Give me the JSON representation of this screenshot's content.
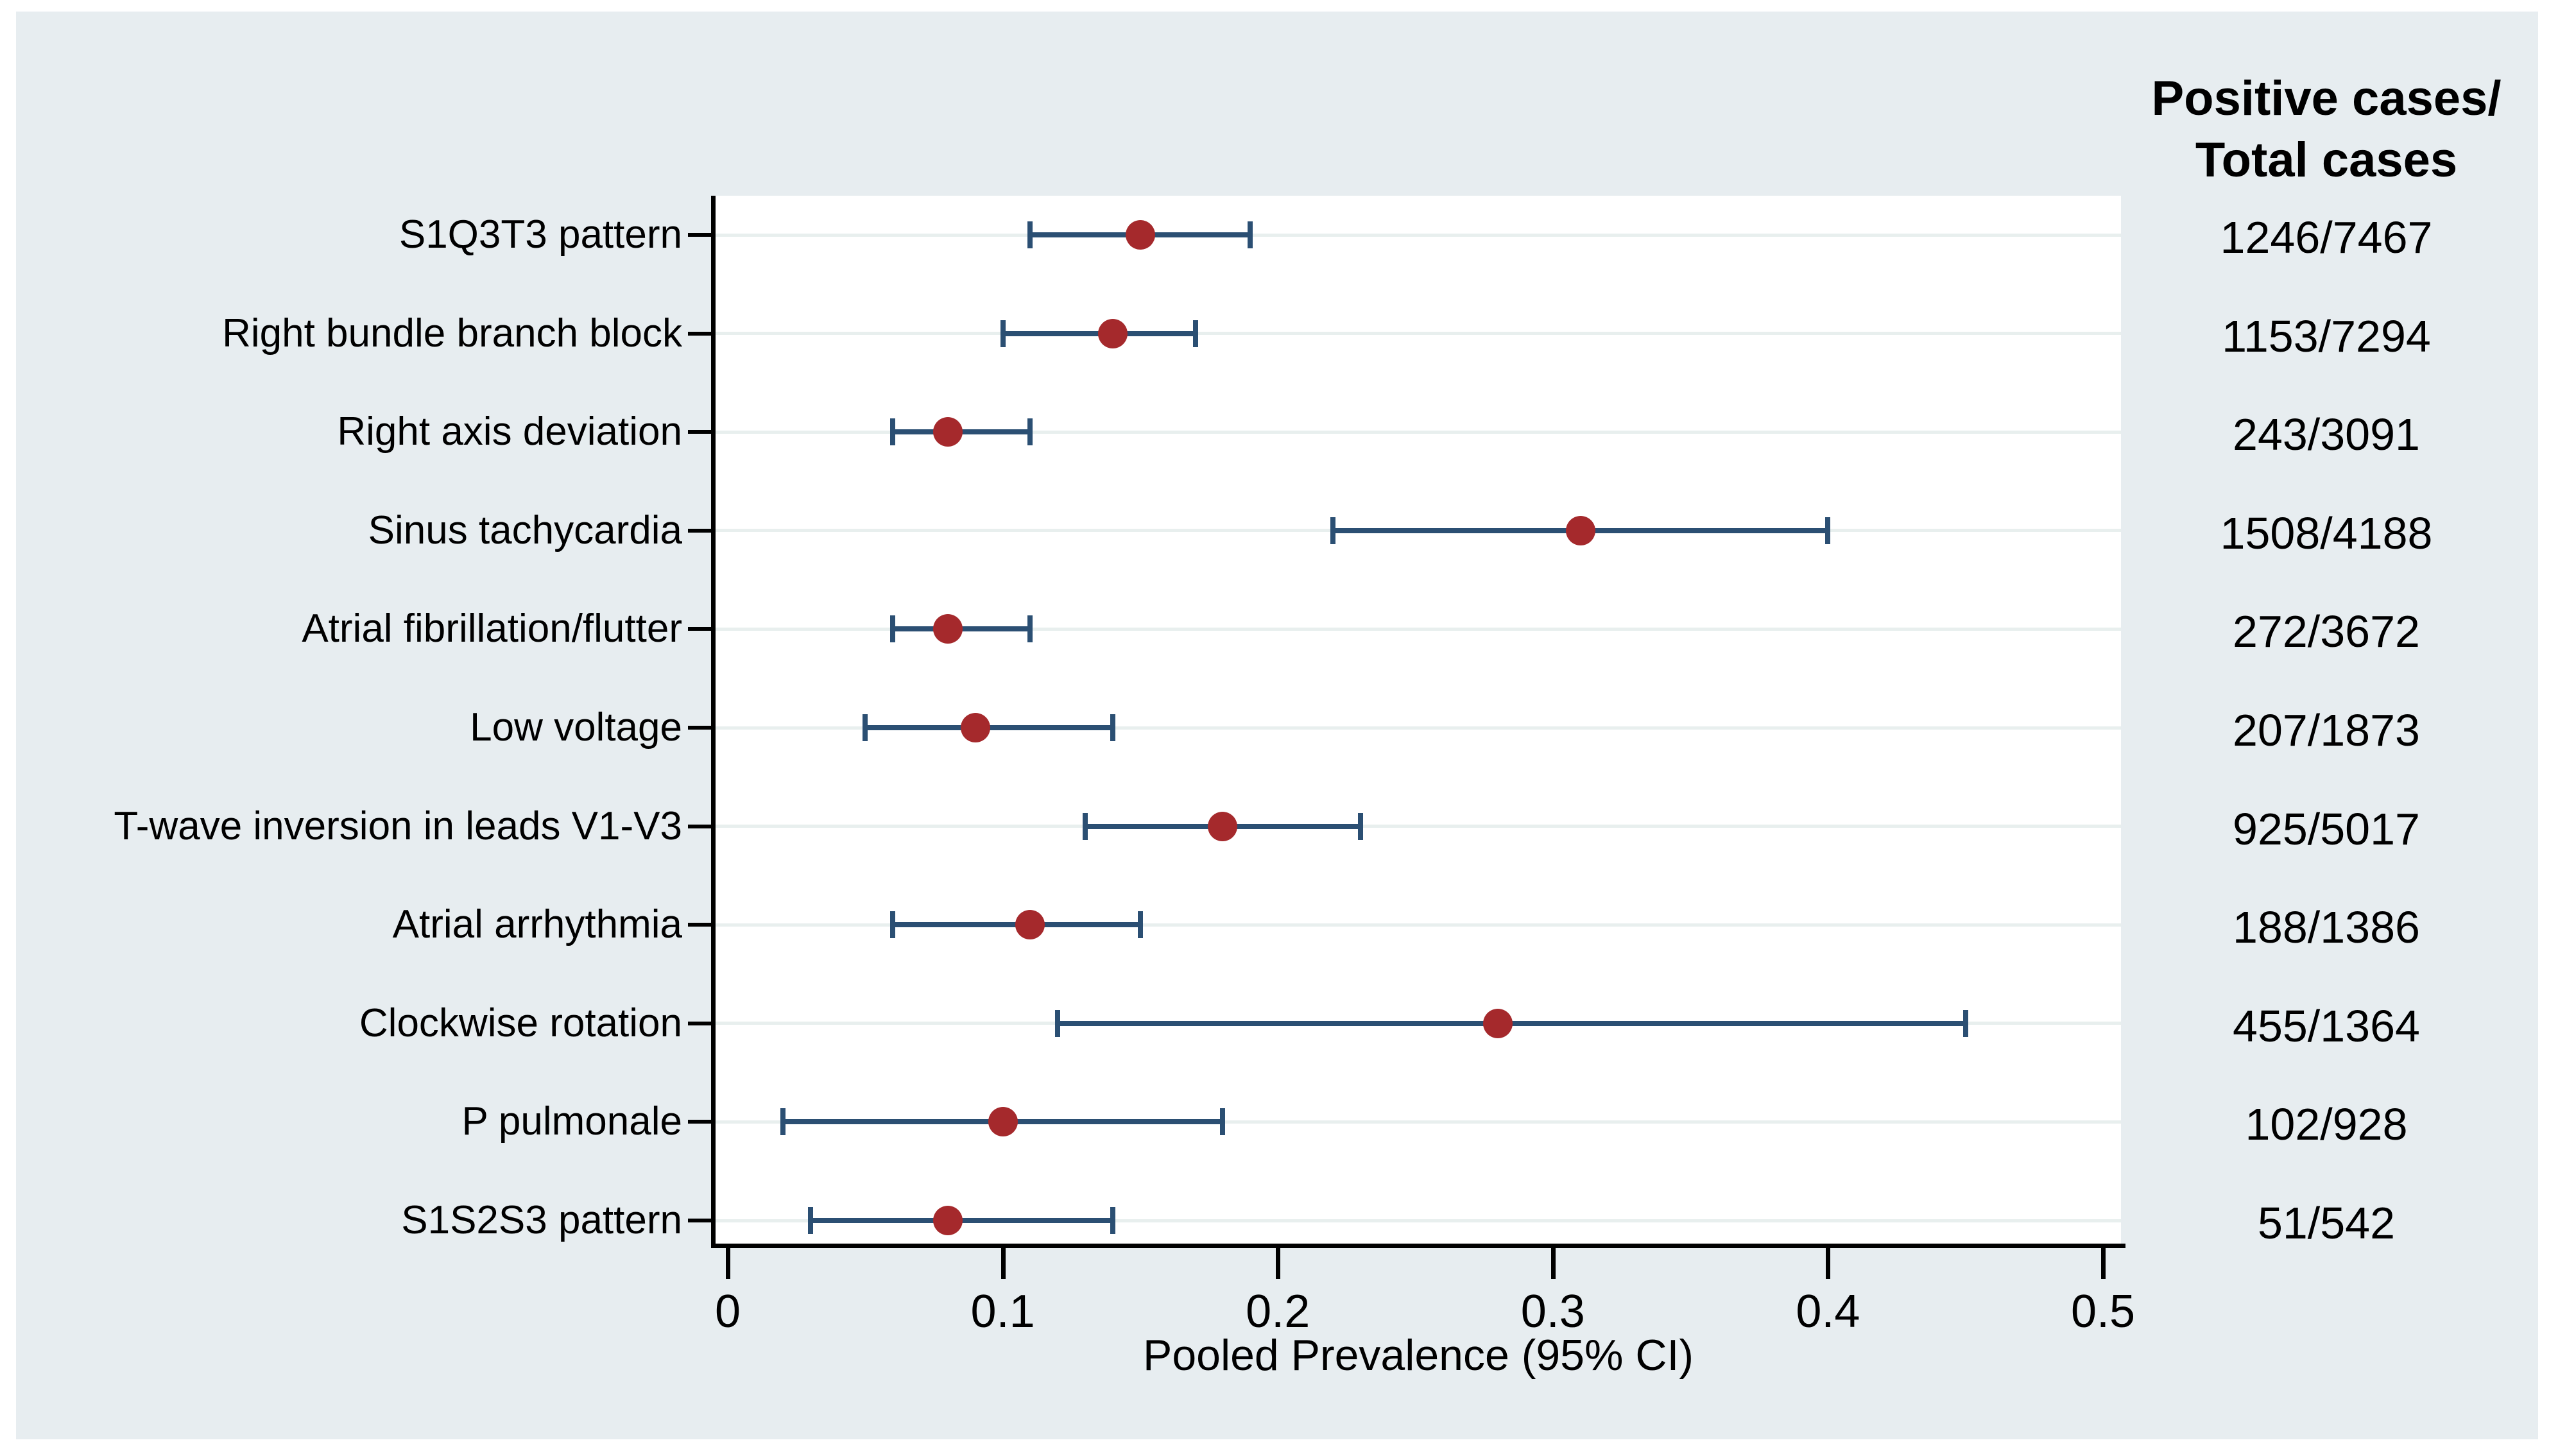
{
  "figure": {
    "column_header_line1": "Positive cases/",
    "column_header_line2": "Total cases"
  },
  "chart_data": {
    "type": "scatter",
    "subtype": "forest-plot",
    "title": "",
    "xlabel": "Pooled Prevalence (95% CI)",
    "ylabel": "",
    "xlim": [
      0,
      0.51
    ],
    "x_ticks": [
      0,
      0.1,
      0.2,
      0.3,
      0.4,
      0.5
    ],
    "x_tick_labels": [
      "0",
      "0.1",
      "0.2",
      "0.3",
      "0.4",
      "0.5"
    ],
    "grid": "horizontal-light",
    "legend": "none",
    "right_column_header": "Positive cases/ Total cases",
    "rows": [
      {
        "label": "S1Q3T3 pattern",
        "estimate": 0.15,
        "ci_low": 0.11,
        "ci_high": 0.19,
        "positive_total": "1246/7467"
      },
      {
        "label": "Right bundle branch block",
        "estimate": 0.14,
        "ci_low": 0.1,
        "ci_high": 0.17,
        "positive_total": "1153/7294"
      },
      {
        "label": "Right axis deviation",
        "estimate": 0.08,
        "ci_low": 0.06,
        "ci_high": 0.11,
        "positive_total": "243/3091"
      },
      {
        "label": "Sinus tachycardia",
        "estimate": 0.31,
        "ci_low": 0.22,
        "ci_high": 0.4,
        "positive_total": "1508/4188"
      },
      {
        "label": "Atrial fibrillation/flutter",
        "estimate": 0.08,
        "ci_low": 0.06,
        "ci_high": 0.11,
        "positive_total": "272/3672"
      },
      {
        "label": "Low voltage",
        "estimate": 0.09,
        "ci_low": 0.05,
        "ci_high": 0.14,
        "positive_total": "207/1873"
      },
      {
        "label": "T-wave inversion in leads V1-V3",
        "estimate": 0.18,
        "ci_low": 0.13,
        "ci_high": 0.23,
        "positive_total": "925/5017"
      },
      {
        "label": "Atrial arrhythmia",
        "estimate": 0.11,
        "ci_low": 0.06,
        "ci_high": 0.15,
        "positive_total": "188/1386"
      },
      {
        "label": "Clockwise rotation",
        "estimate": 0.28,
        "ci_low": 0.12,
        "ci_high": 0.45,
        "positive_total": "455/1364"
      },
      {
        "label": "P pulmonale",
        "estimate": 0.1,
        "ci_low": 0.02,
        "ci_high": 0.18,
        "positive_total": "102/928"
      },
      {
        "label": "S1S2S3 pattern",
        "estimate": 0.08,
        "ci_low": 0.03,
        "ci_high": 0.14,
        "positive_total": "51/542"
      }
    ],
    "colors": {
      "point": "#a5292c",
      "ci_line": "#2b4f73",
      "panel_bg": "#e7edf0",
      "plot_bg": "#ffffff",
      "gridline": "#e8efee",
      "axis": "#000000",
      "text": "#000000"
    }
  }
}
